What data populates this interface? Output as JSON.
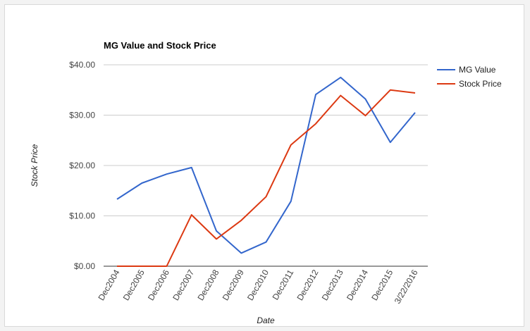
{
  "chart_data": {
    "type": "line",
    "title": "MG Value and Stock Price",
    "xlabel": "Date",
    "ylabel": "Stock Price",
    "ylim": [
      0,
      40
    ],
    "yticks": [
      0,
      10,
      20,
      30,
      40
    ],
    "ytick_labels": [
      "$0.00",
      "$10.00",
      "$20.00",
      "$30.00",
      "$40.00"
    ],
    "categories": [
      "Dec2004",
      "Dec2005",
      "Dec2006",
      "Dec2007",
      "Dec2008",
      "Dec2009",
      "Dec2010",
      "Dec2011",
      "Dec2012",
      "Dec2013",
      "Dec2014",
      "Dec2015",
      "3/22/2016"
    ],
    "series": [
      {
        "name": "MG Value",
        "color": "#3366cc",
        "values": [
          13.3,
          16.5,
          18.3,
          19.6,
          7.0,
          2.6,
          4.8,
          12.9,
          34.1,
          37.5,
          33.2,
          24.6,
          30.5
        ]
      },
      {
        "name": "Stock Price",
        "color": "#dc3912",
        "values": [
          0.0,
          0.0,
          0.0,
          10.2,
          5.4,
          9.1,
          13.8,
          24.1,
          28.3,
          33.9,
          29.9,
          35.0,
          34.4
        ]
      }
    ],
    "grid": true,
    "legend_position": "right"
  }
}
